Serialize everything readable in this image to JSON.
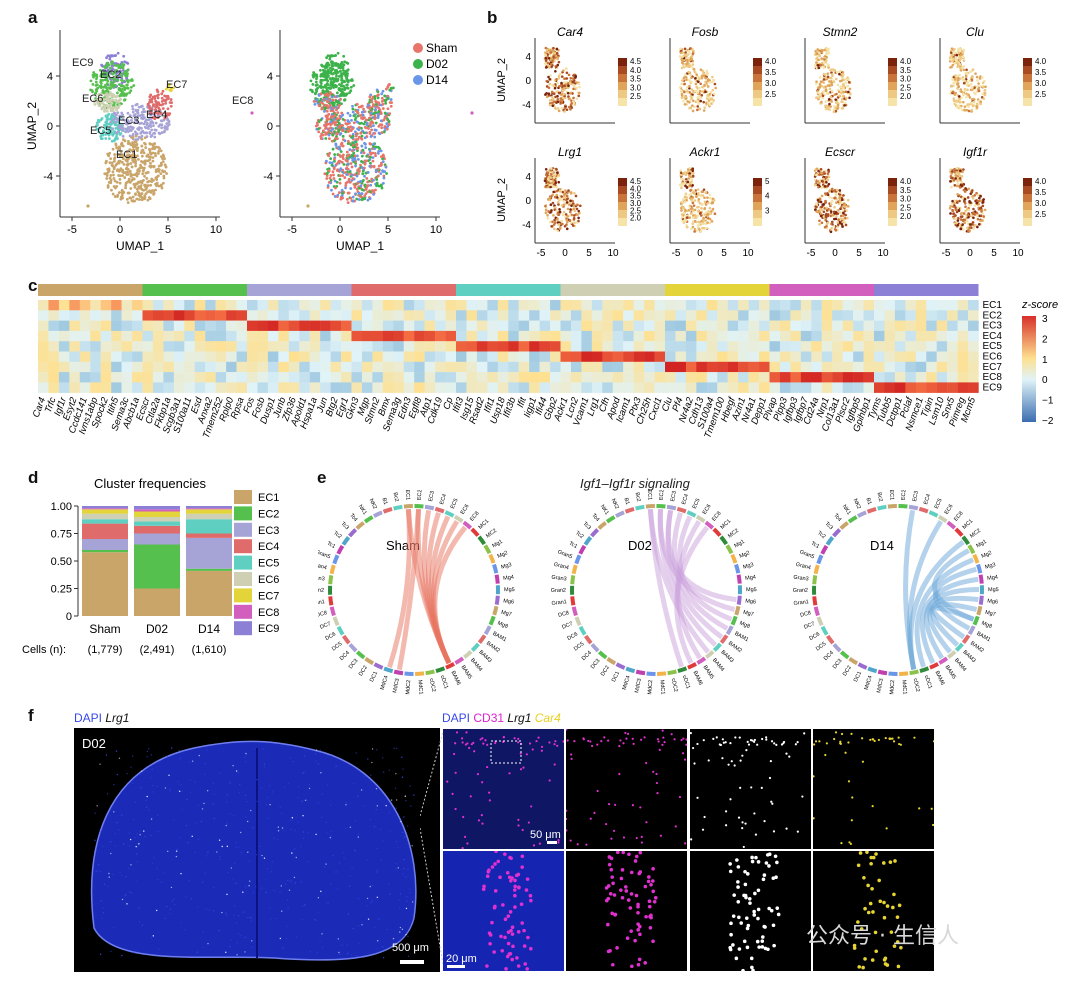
{
  "panels": {
    "a": "a",
    "b": "b",
    "c": "c",
    "d": "d",
    "e": "e",
    "f": "f"
  },
  "panel_a": {
    "xlabel": "UMAP_1",
    "ylabel": "UMAP_2",
    "xticks": [
      "-5",
      "0",
      "5",
      "10"
    ],
    "yticks": [
      "4",
      "0",
      "-4"
    ],
    "clusters": [
      "EC1",
      "EC2",
      "EC3",
      "EC4",
      "EC5",
      "EC6",
      "EC7",
      "EC8",
      "EC9"
    ],
    "legend": [
      "Sham",
      "D02",
      "D14"
    ],
    "colors": {
      "EC1": "#c9a56a",
      "EC2": "#55c04d",
      "EC3": "#a6a3d6",
      "EC4": "#e06b6b",
      "EC5": "#5fcfc2",
      "EC6": "#cfd0b3",
      "EC7": "#e3d43a",
      "EC8": "#d25fbe",
      "EC9": "#8b7fd6",
      "Sham": "#e8756a",
      "D02": "#3cb24a",
      "D14": "#6b95e8"
    }
  },
  "panel_b": {
    "xlabel": "UMAP_1",
    "ylabel": "UMAP_2",
    "xticks": [
      "-5",
      "0",
      "5",
      "10"
    ],
    "yticks": [
      "4",
      "0",
      "-4"
    ],
    "genes": [
      {
        "name": "Car4",
        "scale": [
          "4.5",
          "4.0",
          "3.5",
          "3.0",
          "2.5"
        ]
      },
      {
        "name": "Fosb",
        "scale": [
          "4.0",
          "3.5",
          "3.0",
          "2.5"
        ]
      },
      {
        "name": "Stmn2",
        "scale": [
          "4.0",
          "3.5",
          "3.0",
          "2.5",
          "2.0"
        ]
      },
      {
        "name": "Clu",
        "scale": [
          "4.0",
          "3.5",
          "3.0",
          "2.5"
        ]
      },
      {
        "name": "Lrg1",
        "scale": [
          "4.5",
          "4.0",
          "3.5",
          "3.0",
          "2.5",
          "2.0"
        ]
      },
      {
        "name": "Ackr1",
        "scale": [
          "5",
          "4",
          "3"
        ]
      },
      {
        "name": "Ecscr",
        "scale": [
          "4.0",
          "3.5",
          "3.0",
          "2.5",
          "2.0"
        ]
      },
      {
        "name": "Igf1r",
        "scale": [
          "4.0",
          "3.5",
          "3.0",
          "2.5"
        ]
      }
    ]
  },
  "panel_c": {
    "legend_title": "z-score",
    "legend_ticks": [
      "3",
      "2",
      "1",
      "0",
      "−1",
      "−2"
    ],
    "rows": [
      "EC1",
      "EC2",
      "EC3",
      "EC4",
      "EC5",
      "EC6",
      "EC7",
      "EC8",
      "EC9"
    ],
    "genes": [
      "Car4",
      "Trfc",
      "Igf1r",
      "Esyt2",
      "Ccdc141",
      "Ivns1abp",
      "Spock2",
      "Itih5",
      "Sema3c",
      "Abcb1a",
      "Ecscr",
      "Ctla2a",
      "Fkbp1a",
      "Scgb3a1",
      "S100a11",
      "Esd",
      "Anxa2",
      "Tmem252",
      "Rplp0",
      "Rpsa",
      "Fos",
      "Fosb",
      "Dusp1",
      "Junb",
      "Zfp36",
      "Apold1",
      "Hspa1a",
      "Jun",
      "Btg2",
      "Egr1",
      "Gkn3",
      "Mgp",
      "Stmn2",
      "Bmx",
      "Sema3g",
      "Edn3",
      "Egfl8",
      "Atp1",
      "Cdk19",
      "Cp",
      "Ifit3",
      "Isg15",
      "Rsad2",
      "Ifit1",
      "Usp18",
      "Ifit3b",
      "Ifit",
      "Iigp1",
      "Ifi44",
      "Gbp2",
      "Ackr1",
      "Lcn2",
      "Vcam1",
      "Lrg1",
      "Cfh",
      "Apod",
      "Icam1",
      "Ptx3",
      "Ch25h",
      "Cxcl1",
      "Clu",
      "Pf4",
      "Nr4a2",
      "Cdh13",
      "S100a4",
      "Tmem100",
      "Hbegf",
      "Azin1",
      "Nr4a1",
      "Depp1",
      "Plvap",
      "Plpp3",
      "Igfbp3",
      "Igfbp7",
      "Cd24a",
      "Nrp1",
      "Col13a1",
      "Plscr2",
      "Igfbp5",
      "Gpihbp1",
      "Tyms",
      "Tubb5",
      "Dctpp1",
      "Pclaf",
      "Nsmce1",
      "Tipin",
      "Lsm10",
      "Snx5",
      "Pimreg",
      "Mcm5"
    ]
  },
  "panel_d": {
    "title": "Cluster frequencies",
    "yticks": [
      "1.00",
      "0.75",
      "0.50",
      "0.25",
      "0"
    ],
    "cells_label": "Cells (n):",
    "chart_data": {
      "type": "bar",
      "stacked": true,
      "title": "Cluster frequencies",
      "categories": [
        "Sham",
        "D02",
        "D14"
      ],
      "cell_counts": [
        "(1,779)",
        "(2,491)",
        "(1,610)"
      ],
      "ylim": [
        0,
        1
      ],
      "series": [
        {
          "name": "EC1",
          "color": "#c9a56a",
          "values": [
            0.58,
            0.25,
            0.41
          ]
        },
        {
          "name": "EC2",
          "color": "#55c04d",
          "values": [
            0.02,
            0.4,
            0.02
          ]
        },
        {
          "name": "EC3",
          "color": "#a6a3d6",
          "values": [
            0.1,
            0.1,
            0.28
          ]
        },
        {
          "name": "EC4",
          "color": "#e06b6b",
          "values": [
            0.14,
            0.07,
            0.04
          ]
        },
        {
          "name": "EC5",
          "color": "#5fcfc2",
          "values": [
            0.04,
            0.04,
            0.13
          ]
        },
        {
          "name": "EC6",
          "color": "#cfd0b3",
          "values": [
            0.05,
            0.04,
            0.05
          ]
        },
        {
          "name": "EC7",
          "color": "#e3d43a",
          "values": [
            0.04,
            0.05,
            0.04
          ]
        },
        {
          "name": "EC8",
          "color": "#d25fbe",
          "values": [
            0.01,
            0.02,
            0.01
          ]
        },
        {
          "name": "EC9",
          "color": "#8b7fd6",
          "values": [
            0.02,
            0.03,
            0.02
          ]
        }
      ]
    }
  },
  "panel_e": {
    "title": "Igf1–Igf1r signaling",
    "chords": [
      {
        "name": "Sham",
        "link_color": "#e8735f"
      },
      {
        "name": "D02",
        "link_color": "#c9a0dc"
      },
      {
        "name": "D14",
        "link_color": "#6aa5d8"
      }
    ],
    "nodes": [
      "EC1",
      "EC2",
      "EC3",
      "EC4",
      "EC5",
      "EC6",
      "EC8",
      "MC1",
      "MC2",
      "Mg1",
      "Mg2",
      "Mg3",
      "Mg4",
      "Mg5",
      "Mg6",
      "Mg7",
      "Mg8",
      "BAM1",
      "BAM2",
      "BAM3",
      "BAM4",
      "BAM5",
      "BAM6",
      "cDC1",
      "cDC2",
      "MdC1",
      "MdC2",
      "MdC3",
      "MdC4",
      "DC1",
      "DC2",
      "DC3",
      "DC4",
      "DC5",
      "DC6",
      "DC7",
      "DC8",
      "Gran1",
      "Gran2",
      "Gran3",
      "Gran4",
      "Gran5",
      "Tc1",
      "Tc2",
      "Tc3",
      "Tc4",
      "NK1",
      "NK2",
      "B1",
      "Bc2"
    ]
  },
  "panel_f": {
    "left": {
      "dapi": "DAPI",
      "gene": "Lrg1",
      "condition": "D02",
      "scale": "500 μm"
    },
    "right": {
      "dapi": "DAPI",
      "cd31": "CD31",
      "gene": "Lrg1",
      "gene2": "Car4",
      "scale_top": "50 μm",
      "scale_bottom": "20 μm"
    },
    "watermark": "公众号 · 生信人"
  }
}
